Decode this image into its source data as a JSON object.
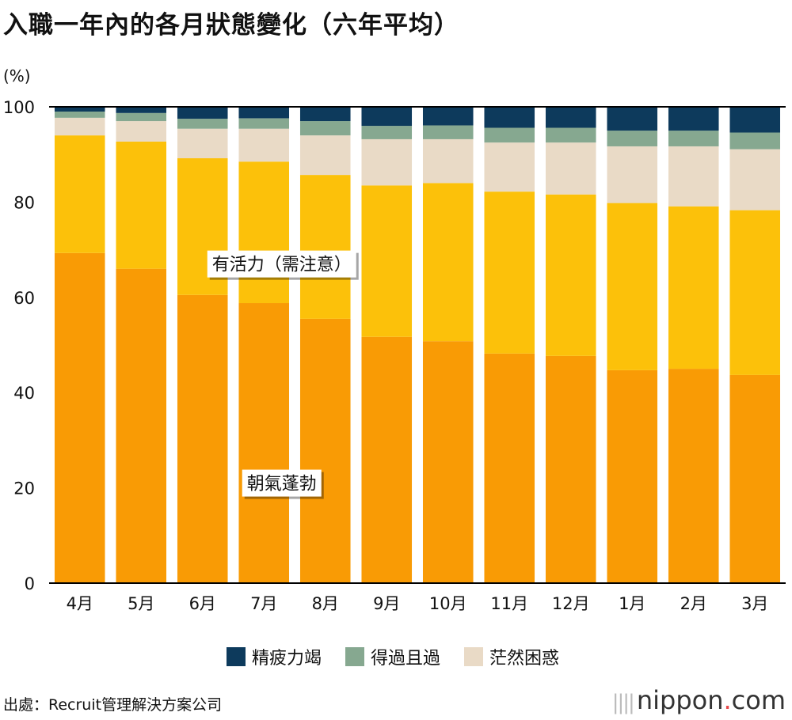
{
  "title": "入職一年內的各月狀態變化（六年平均）",
  "unit_label": "(%)",
  "legend": [
    {
      "label": "精疲力竭",
      "color": "#0d3a5c"
    },
    {
      "label": "得過且過",
      "color": "#86a890"
    },
    {
      "label": "茫然困惑",
      "color": "#e9dac6"
    }
  ],
  "source": "出處：Recruit管理解決方案公司",
  "brand": {
    "pre": "||||",
    "name": "nippon",
    "dot": ".",
    "tld": "com"
  },
  "chart_data": {
    "type": "bar",
    "stacked": true,
    "categories": [
      "4月",
      "5月",
      "6月",
      "7月",
      "8月",
      "9月",
      "10月",
      "11月",
      "12月",
      "1月",
      "2月",
      "3月"
    ],
    "ylim": [
      0,
      100
    ],
    "yticks": [
      0,
      20,
      40,
      60,
      80,
      100
    ],
    "series": [
      {
        "name": "朝氣蓬勃",
        "color": "#f99b05",
        "values": [
          69.3,
          66.0,
          60.5,
          58.8,
          55.5,
          51.7,
          50.8,
          48.2,
          47.7,
          44.7,
          45.0,
          43.7
        ]
      },
      {
        "name": "有活力（需注意）",
        "color": "#fcc10a",
        "values": [
          24.7,
          26.7,
          28.7,
          29.7,
          30.2,
          31.8,
          33.2,
          34.0,
          33.9,
          35.1,
          34.1,
          34.6
        ]
      },
      {
        "name": "茫然困惑",
        "color": "#e9dac6",
        "values": [
          3.7,
          4.3,
          6.2,
          6.9,
          8.3,
          9.7,
          9.2,
          10.3,
          10.9,
          11.9,
          12.6,
          12.8
        ]
      },
      {
        "name": "得過且過",
        "color": "#86a890",
        "values": [
          1.3,
          1.7,
          2.1,
          2.2,
          3.0,
          2.8,
          2.9,
          3.1,
          3.1,
          3.3,
          3.3,
          3.5
        ]
      },
      {
        "name": "精疲力竭",
        "color": "#0d3a5c",
        "values": [
          1.0,
          1.3,
          2.5,
          2.4,
          3.0,
          4.0,
          3.9,
          4.4,
          4.4,
          5.0,
          5.0,
          5.4
        ]
      }
    ],
    "annotations": [
      {
        "text": "有活力（需注意）",
        "category": "6月",
        "value": 67
      },
      {
        "text": "朝氣蓬勃",
        "category": "6月",
        "value": 21
      }
    ],
    "legend_position": "bottom",
    "grid": false
  }
}
